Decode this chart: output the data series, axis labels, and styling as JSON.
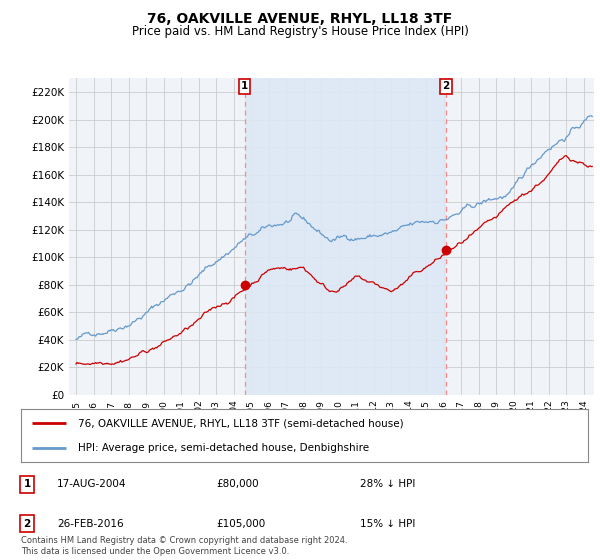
{
  "title": "76, OAKVILLE AVENUE, RHYL, LL18 3TF",
  "subtitle": "Price paid vs. HM Land Registry's House Price Index (HPI)",
  "title_fontsize": 10,
  "subtitle_fontsize": 8.5,
  "ylabel_ticks": [
    "£0",
    "£20K",
    "£40K",
    "£60K",
    "£80K",
    "£100K",
    "£120K",
    "£140K",
    "£160K",
    "£180K",
    "£200K",
    "£220K"
  ],
  "ytick_values": [
    0,
    20000,
    40000,
    60000,
    80000,
    100000,
    120000,
    140000,
    160000,
    180000,
    200000,
    220000
  ],
  "ylim": [
    0,
    230000
  ],
  "xlim_start": 1994.6,
  "xlim_end": 2024.6,
  "background_color": "#ffffff",
  "plot_bg_color": "#f0f4f8",
  "grid_color": "#cccccc",
  "hpi_color": "#6699cc",
  "hpi_fill_color": "#dce8f5",
  "price_color": "#cc0000",
  "vline_color": "#ff8888",
  "transactions": [
    {
      "year": 2004.63,
      "price": 80000,
      "label": "1",
      "date": "17-AUG-2004",
      "pct": "28%",
      "direction": "↓"
    },
    {
      "year": 2016.15,
      "price": 105000,
      "label": "2",
      "date": "26-FEB-2016",
      "pct": "15%",
      "direction": "↓"
    }
  ],
  "legend_line1": "76, OAKVILLE AVENUE, RHYL, LL18 3TF (semi-detached house)",
  "legend_line2": "HPI: Average price, semi-detached house, Denbighshire",
  "footer": "Contains HM Land Registry data © Crown copyright and database right 2024.\nThis data is licensed under the Open Government Licence v3.0.",
  "xtick_years": [
    1995,
    1996,
    1997,
    1998,
    1999,
    2000,
    2001,
    2002,
    2003,
    2004,
    2005,
    2006,
    2007,
    2008,
    2009,
    2010,
    2011,
    2012,
    2013,
    2014,
    2015,
    2016,
    2017,
    2018,
    2019,
    2020,
    2021,
    2022,
    2023,
    2024
  ]
}
